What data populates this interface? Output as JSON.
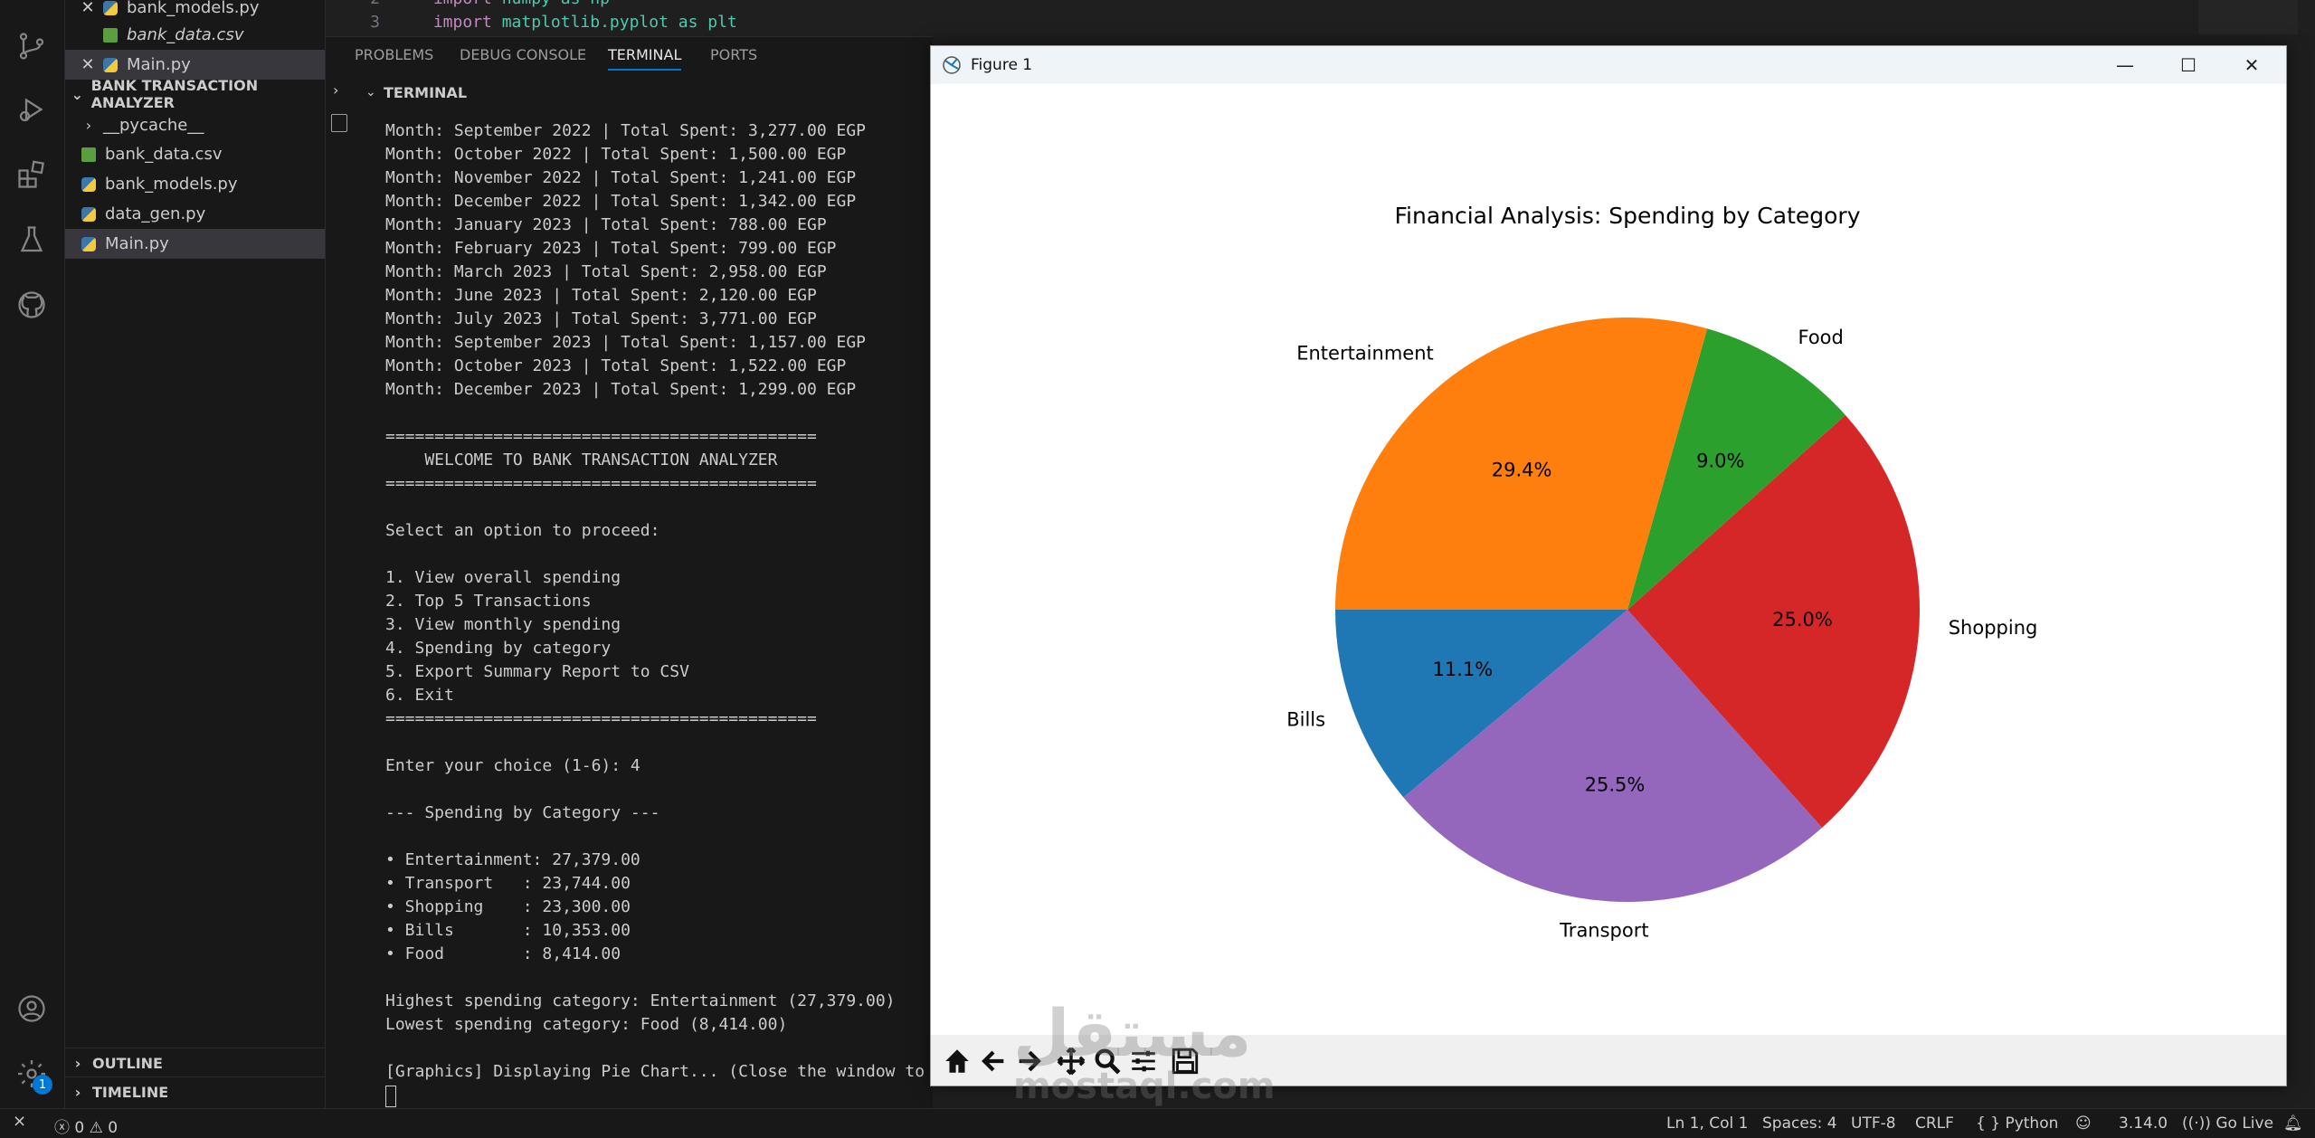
{
  "explorer": {
    "open_editors": [
      {
        "label": "bank_models.py",
        "type": "py",
        "closable": true
      },
      {
        "label": "bank_data.csv",
        "type": "csv",
        "closable": false
      },
      {
        "label": "Main.py",
        "type": "py",
        "closable": true
      }
    ],
    "project_title": "BANK TRANSACTION ANALYZER",
    "files": [
      {
        "label": "__pycache__",
        "type": "folder"
      },
      {
        "label": "bank_data.csv",
        "type": "csv"
      },
      {
        "label": "bank_models.py",
        "type": "py"
      },
      {
        "label": "data_gen.py",
        "type": "py"
      },
      {
        "label": "Main.py",
        "type": "py"
      }
    ],
    "outline_label": "OUTLINE",
    "timeline_label": "TIMELINE"
  },
  "editor": {
    "lines": [
      {
        "num": "2",
        "keyword": "import",
        "rest": " numpy as np"
      },
      {
        "num": "3",
        "keyword": "import",
        "rest": " matplotlib.pyplot as plt"
      }
    ]
  },
  "panel": {
    "tabs": [
      "PROBLEMS",
      "DEBUG CONSOLE",
      "TERMINAL",
      "PORTS"
    ],
    "terminal_label": "TERMINAL",
    "lines": [
      "Month: September 2022 | Total Spent: 3,277.00 EGP",
      "Month: October 2022 | Total Spent: 1,500.00 EGP",
      "Month: November 2022 | Total Spent: 1,241.00 EGP",
      "Month: December 2022 | Total Spent: 1,342.00 EGP",
      "Month: January 2023 | Total Spent: 788.00 EGP",
      "Month: February 2023 | Total Spent: 799.00 EGP",
      "Month: March 2023 | Total Spent: 2,958.00 EGP",
      "Month: June 2023 | Total Spent: 2,120.00 EGP",
      "Month: July 2023 | Total Spent: 3,771.00 EGP",
      "Month: September 2023 | Total Spent: 1,157.00 EGP",
      "Month: October 2023 | Total Spent: 1,522.00 EGP",
      "Month: December 2023 | Total Spent: 1,299.00 EGP",
      "",
      "============================================",
      "    WELCOME TO BANK TRANSACTION ANALYZER",
      "============================================",
      "",
      "Select an option to proceed:",
      "",
      "1. View overall spending",
      "2. Top 5 Transactions",
      "3. View monthly spending",
      "4. Spending by category",
      "5. Export Summary Report to CSV",
      "6. Exit",
      "============================================",
      "",
      "Enter your choice (1-6): 4",
      "",
      "--- Spending by Category ---",
      "",
      "• Entertainment: 27,379.00",
      "• Transport   : 23,744.00",
      "• Shopping    : 23,300.00",
      "• Bills       : 10,353.00",
      "• Food        : 8,414.00",
      "",
      "Highest spending category: Entertainment (27,379.00)",
      "Lowest spending category: Food (8,414.00)",
      "",
      "[Graphics] Displaying Pie Chart... (Close the window to"
    ]
  },
  "figure": {
    "window_title": "Figure 1"
  },
  "chart_data": {
    "type": "pie",
    "title": "Financial Analysis: Spending by Category",
    "categories": [
      "Bills",
      "Transport",
      "Shopping",
      "Food",
      "Entertainment"
    ],
    "values": [
      11.1,
      25.5,
      25.0,
      9.0,
      29.4
    ],
    "labels_pct": [
      "11.1%",
      "25.5%",
      "25.0%",
      "9.0%",
      "29.4%"
    ],
    "colors": [
      "#1f77b4",
      "#9467bd",
      "#d62728",
      "#2ca02c",
      "#ff7f0e"
    ],
    "start_angle_deg": 180,
    "direction": "counterclockwise"
  },
  "statusbar": {
    "errors": "0",
    "warnings": "0",
    "position": "Ln 1, Col 1",
    "spaces": "Spaces: 4",
    "encoding": "UTF-8",
    "eol": "CRLF",
    "language": "Python",
    "version": "3.14.0",
    "golive": "Go Live"
  },
  "watermark": {
    "arabic": "مستقل",
    "latin": "mostaql.com"
  },
  "colors": {
    "accent": "#0078d4",
    "sidebar_bg": "#181818",
    "keyword": "#c586c0"
  }
}
